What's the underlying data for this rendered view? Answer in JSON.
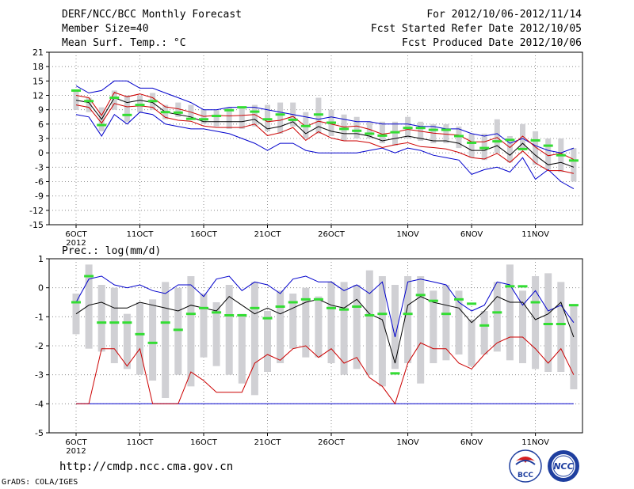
{
  "header": {
    "title": "DERF/NCC/BCC Monthly Forecast",
    "member_size": "Member Size=40",
    "variable": "Mean Surf. Temp.: °C",
    "period": "For 2012/10/06-2012/11/14",
    "started": "Fcst Started Refer Date 2012/10/05",
    "produced": "Fcst Produced Date 2012/10/06"
  },
  "footer": {
    "url": "http://cmdp.ncc.cma.gov.cn",
    "credit": "GrADS: COLA/IGES",
    "logo_left": "BCC",
    "logo_right": "NCC"
  },
  "colors": {
    "envelope": "#0000cc",
    "ensemble_mean": "#000000",
    "spread": "#cc0000",
    "box": "#d0d0d4",
    "marker": "#33dd33",
    "grid": "#777777"
  },
  "chart_data": [
    {
      "type": "box-line",
      "title": "Mean Surf. Temp.: °C",
      "xlabel_year": "2012",
      "x_ticks": [
        {
          "day": 0,
          "label": "6OCT"
        },
        {
          "day": 5,
          "label": "11OCT"
        },
        {
          "day": 10,
          "label": "16OCT"
        },
        {
          "day": 15,
          "label": "21OCT"
        },
        {
          "day": 20,
          "label": "26OCT"
        },
        {
          "day": 26,
          "label": "1NOV"
        },
        {
          "day": 31,
          "label": "6NOV"
        },
        {
          "day": 36,
          "label": "11NOV"
        }
      ],
      "ylim": [
        -15,
        21
      ],
      "yticks": [
        -15,
        -12,
        -9,
        -6,
        -3,
        0,
        3,
        6,
        9,
        12,
        15,
        18,
        21
      ],
      "days": [
        0,
        1,
        2,
        3,
        4,
        5,
        6,
        7,
        8,
        9,
        10,
        11,
        12,
        13,
        14,
        15,
        16,
        17,
        18,
        19,
        20,
        21,
        22,
        23,
        24,
        25,
        26,
        27,
        28,
        29,
        30,
        31,
        32,
        33,
        34,
        35,
        36,
        37,
        38,
        39
      ],
      "max_line": [
        14,
        12.5,
        13,
        15,
        15,
        13.5,
        13.5,
        12.5,
        11.5,
        10.5,
        9,
        9,
        9.5,
        9.5,
        9.5,
        9,
        8.5,
        8,
        7.5,
        7,
        7.5,
        7,
        6.5,
        6.5,
        6,
        6,
        6,
        5.5,
        5.5,
        5,
        5,
        4,
        3.5,
        4,
        2,
        3,
        1.5,
        0.5,
        0,
        1
      ],
      "min_line": [
        8,
        7.5,
        3.5,
        8,
        6,
        8.5,
        8,
        6,
        5.5,
        5,
        5,
        4.5,
        4,
        3,
        2,
        0.5,
        2,
        2,
        0.5,
        0,
        0,
        0,
        0,
        0.5,
        1,
        0,
        1,
        0.5,
        -0.5,
        -1,
        -1.5,
        -4.5,
        -3.5,
        -3,
        -4,
        -1,
        -5.5,
        -3.5,
        -6,
        -7.5
      ],
      "upper_line": [
        12,
        11.5,
        7.8,
        12.6,
        11.7,
        12.3,
        11.5,
        9.6,
        9.2,
        8.5,
        7.6,
        7.8,
        7.7,
        7.8,
        8,
        6.5,
        6.8,
        7.6,
        5.5,
        6.6,
        6,
        5.4,
        5.6,
        4.9,
        3.9,
        4.3,
        4.9,
        4.5,
        4.1,
        3.9,
        3.7,
        2.3,
        2.3,
        3.2,
        1.1,
        3.5,
        1.2,
        -0.6,
        -0.1,
        -1.4
      ],
      "mean_line": [
        11,
        10.5,
        7,
        11.5,
        10.5,
        11,
        10.5,
        8.5,
        8,
        7.5,
        6.5,
        6.5,
        6.5,
        6.5,
        7,
        5,
        5.5,
        6.5,
        4,
        5.5,
        4.5,
        4,
        4,
        3.5,
        2.5,
        3,
        3.5,
        3,
        2.5,
        2.5,
        2,
        0.5,
        0.5,
        1.5,
        -0.5,
        2,
        -0.5,
        -2.5,
        -2,
        -3
      ],
      "lower_line": [
        10,
        9.5,
        6.2,
        10.3,
        9.6,
        9.8,
        9.5,
        7.4,
        6.8,
        6.6,
        5.6,
        5.3,
        5.3,
        5.3,
        6,
        3.6,
        4.2,
        5.3,
        2.6,
        4.4,
        3.1,
        2.5,
        2.5,
        2.1,
        1.1,
        1.7,
        2.1,
        1.3,
        1.1,
        0.8,
        0.1,
        -1,
        -1.3,
        -0.1,
        -2,
        0.4,
        -2.1,
        -3.7,
        -3.7,
        -4.3
      ],
      "box_low": [
        9,
        8.5,
        4.5,
        9,
        6.5,
        8.5,
        9,
        7,
        7.5,
        7,
        6,
        5.5,
        5,
        5,
        5.5,
        4.5,
        4,
        5.5,
        3,
        4,
        3.5,
        2.5,
        3,
        3,
        2,
        1.5,
        3,
        2.5,
        2,
        2,
        1,
        -1,
        -1.5,
        0,
        -2,
        0.5,
        -2.5,
        -3.5,
        -4,
        -6
      ],
      "box_high": [
        13,
        11.5,
        9.5,
        13,
        12,
        12,
        12.5,
        10,
        10.5,
        10,
        9,
        9,
        9.5,
        9.5,
        10,
        10,
        10.5,
        10.5,
        8.5,
        11.5,
        9,
        8,
        7.5,
        6.5,
        6.5,
        6.5,
        7.5,
        6.5,
        6,
        6,
        5.5,
        4,
        4,
        7,
        3.5,
        6,
        4.5,
        3,
        3,
        1
      ],
      "marker": [
        13,
        10.8,
        5.8,
        11.5,
        7.9,
        10,
        10.8,
        8.5,
        8.4,
        7.1,
        7,
        7.7,
        8.9,
        9.5,
        8.6,
        7,
        8,
        6.9,
        5.6,
        8,
        6.3,
        5,
        4.6,
        4,
        3.6,
        4.3,
        5.2,
        5.2,
        4.8,
        4.8,
        3.5,
        2.1,
        1,
        2.4,
        2.7,
        0.8,
        2.6,
        1.5,
        -0.5,
        -1.6
      ]
    },
    {
      "type": "box-line",
      "title": "Prec.: log(mm/d)",
      "xlabel_year": "2012",
      "x_ticks": [
        {
          "day": 0,
          "label": "6OCT"
        },
        {
          "day": 5,
          "label": "11OCT"
        },
        {
          "day": 10,
          "label": "16OCT"
        },
        {
          "day": 15,
          "label": "21OCT"
        },
        {
          "day": 20,
          "label": "26OCT"
        },
        {
          "day": 26,
          "label": "1NOV"
        },
        {
          "day": 31,
          "label": "6NOV"
        },
        {
          "day": 36,
          "label": "11NOV"
        }
      ],
      "ylim": [
        -5,
        1
      ],
      "yticks": [
        -5,
        -4,
        -3,
        -2,
        -1,
        0,
        1
      ],
      "days": [
        0,
        1,
        2,
        3,
        4,
        5,
        6,
        7,
        8,
        9,
        10,
        11,
        12,
        13,
        14,
        15,
        16,
        17,
        18,
        19,
        20,
        21,
        22,
        23,
        24,
        25,
        26,
        27,
        28,
        29,
        30,
        31,
        32,
        33,
        34,
        35,
        36,
        37,
        38,
        39
      ],
      "max_line": [
        -0.5,
        0.3,
        0.4,
        0.1,
        0,
        0.1,
        -0.1,
        -0.2,
        0.1,
        0.1,
        -0.3,
        0.3,
        0.4,
        -0.1,
        0.2,
        0.1,
        -0.2,
        0.3,
        0.4,
        0.2,
        0.2,
        -0.1,
        0.1,
        -0.2,
        0.2,
        -1.7,
        0.2,
        0.3,
        0.2,
        0.1,
        -0.5,
        -0.8,
        -0.6,
        0.2,
        0.1,
        -0.6,
        -0.1,
        -0.8,
        -0.6,
        -1.2
      ],
      "min_line": [
        -4,
        -4,
        -4,
        -4,
        -4,
        -4,
        -4,
        -4,
        -4,
        -4,
        -4,
        -4,
        -4,
        -4,
        -4,
        -4,
        -4,
        -4,
        -4,
        -4,
        -4,
        -4,
        -4,
        -4,
        -4,
        -4,
        -4,
        -4,
        -4,
        -4,
        -4,
        -4,
        -4,
        -4,
        -4,
        -4,
        -4,
        -4,
        -4,
        -4
      ],
      "upper_line": [
        -0.9,
        -0.6,
        -0.5,
        -0.7,
        -0.7,
        -0.5,
        -0.6,
        -0.7,
        -0.8,
        -0.6,
        -0.7,
        -0.8,
        -0.3,
        -0.6,
        -0.9,
        -0.7,
        -0.9,
        -0.7,
        -0.5,
        -0.4,
        -0.6,
        -0.7,
        -0.4,
        -0.9,
        -1.1,
        -2.6,
        -0.6,
        -0.3,
        -0.5,
        -0.6,
        -0.7,
        -1.2,
        -0.8,
        -0.3,
        -0.5,
        -0.5,
        -1.1,
        -0.9,
        -0.5,
        -1.7
      ],
      "mean_line": [
        -0.9,
        -0.6,
        -0.5,
        -0.7,
        -0.7,
        -0.5,
        -0.6,
        -0.7,
        -0.8,
        -0.6,
        -0.7,
        -0.8,
        -0.3,
        -0.6,
        -0.9,
        -0.7,
        -0.9,
        -0.7,
        -0.5,
        -0.4,
        -0.6,
        -0.7,
        -0.4,
        -0.9,
        -1.1,
        -2.6,
        -0.6,
        -0.3,
        -0.5,
        -0.6,
        -0.7,
        -1.2,
        -0.8,
        -0.3,
        -0.5,
        -0.5,
        -1.1,
        -0.9,
        -0.5,
        -1.7
      ],
      "lower_line": [
        -4,
        -4,
        -2.1,
        -2.1,
        -2.7,
        -2.1,
        -4,
        -4,
        -4,
        -2.9,
        -3.2,
        -3.6,
        -3.6,
        -3.6,
        -2.6,
        -2.3,
        -2.5,
        -2.1,
        -2,
        -2.4,
        -2.1,
        -2.6,
        -2.4,
        -3.1,
        -3.4,
        -4,
        -2.6,
        -1.9,
        -2.1,
        -2.1,
        -2.6,
        -2.8,
        -2.3,
        -1.9,
        -1.7,
        -1.7,
        -2.1,
        -2.6,
        -2.1,
        -3
      ],
      "box_low": [
        -1.6,
        -2.1,
        -2.2,
        -2.6,
        -2.8,
        -3.0,
        -3.2,
        -3.8,
        -3.0,
        -3.4,
        -2.4,
        -2.7,
        -3.0,
        -3.3,
        -3.7,
        -2.9,
        -2.6,
        -2.1,
        -2.4,
        -2.4,
        -2.6,
        -3.0,
        -2.8,
        -3.0,
        -3.4,
        -2.8,
        -2.6,
        -3.3,
        -2.6,
        -2.5,
        -2.3,
        -2.7,
        -2.3,
        -2.2,
        -2.5,
        -2.6,
        -2.8,
        -2.9,
        -2.9,
        -3.5
      ],
      "box_high": [
        -0.2,
        0.8,
        0.1,
        0.0,
        -0.9,
        -0.5,
        -0.4,
        0.2,
        0.0,
        0.4,
        -0.2,
        -0.5,
        0.1,
        -0.9,
        0.2,
        -0.8,
        -0.1,
        -0.2,
        0.0,
        -0.3,
        0.2,
        0.2,
        0.1,
        0.6,
        0.4,
        0.1,
        0.4,
        0.4,
        -0.1,
        0.1,
        -0.1,
        -1.1,
        -0.8,
        0.2,
        0.8,
        -0.1,
        0.4,
        0.5,
        0.2,
        -0.6
      ],
      "marker": [
        -0.5,
        0.4,
        -1.2,
        -1.2,
        -1.2,
        -1.6,
        -1.9,
        -1.2,
        -1.45,
        -0.9,
        -0.7,
        -0.85,
        -0.95,
        -0.95,
        -0.7,
        -1.05,
        -0.65,
        -0.5,
        -0.4,
        -0.4,
        -0.7,
        -0.75,
        -0.65,
        -0.95,
        -0.9,
        -2.95,
        -0.9,
        -0.25,
        -0.45,
        -0.9,
        -0.4,
        -0.55,
        -1.3,
        -0.85,
        0.05,
        0.05,
        -0.5,
        -1.25,
        -1.25,
        -0.6
      ]
    }
  ],
  "panel_labels": {
    "temp_label": "Mean Surf. Temp.: °C",
    "prec_label": "Prec.: log(mm/d)",
    "year_top": "2012",
    "year_bottom": "2012"
  }
}
